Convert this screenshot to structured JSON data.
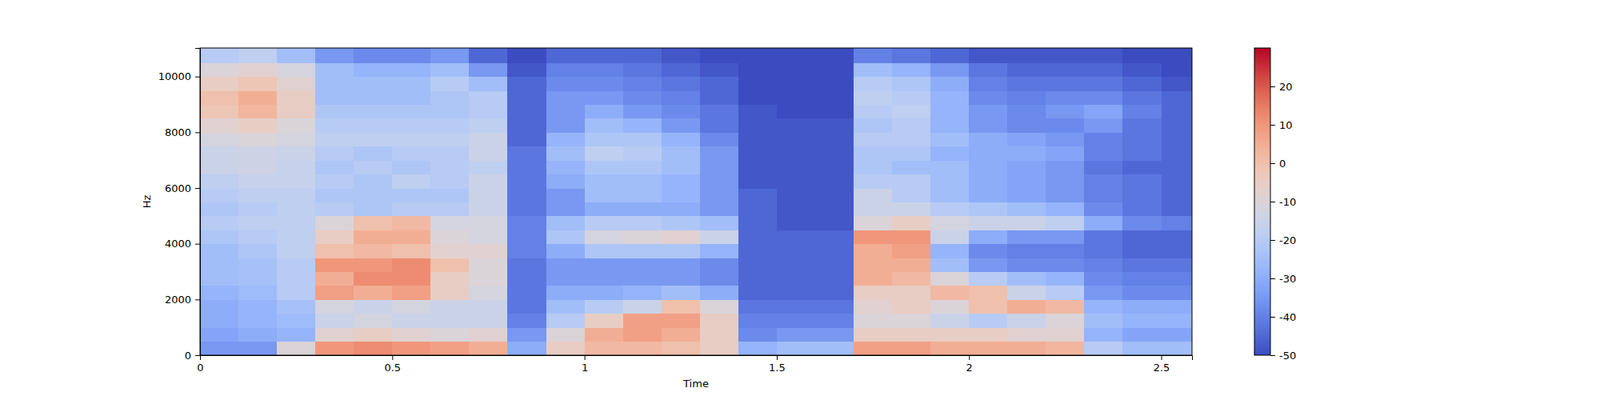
{
  "chart_data": {
    "type": "heatmap",
    "x_label": "Time",
    "y_label": "Hz",
    "xlim": [
      0,
      2.58
    ],
    "ylim": [
      0,
      11025
    ],
    "xticks": [
      0,
      0.5,
      1,
      1.5,
      2,
      2.5
    ],
    "yticks": [
      0,
      2000,
      4000,
      6000,
      8000,
      10000
    ],
    "x_bins": [
      0,
      0.1,
      0.2,
      0.3,
      0.4,
      0.5,
      0.6,
      0.7,
      0.8,
      0.9,
      1,
      1.1,
      1.2,
      1.3,
      1.4,
      1.5,
      1.6,
      1.7,
      1.8,
      1.9,
      2,
      2.1,
      2.2,
      2.3,
      2.4,
      2.5,
      2.58
    ],
    "y_bins": [
      0,
      500,
      1000,
      1500,
      2000,
      2500,
      3000,
      3500,
      4000,
      4500,
      5000,
      5500,
      6000,
      6500,
      7000,
      7500,
      8000,
      8500,
      9000,
      9500,
      10000,
      10500,
      11025
    ],
    "values": [
      [
        -35,
        -32,
        -30,
        -30,
        -28,
        -25,
        -25,
        -25,
        -22,
        -20,
        -22,
        -20,
        -18,
        -15,
        -15,
        -12,
        -8,
        -2,
        0,
        -5,
        -10,
        -20
      ],
      [
        -35,
        -30,
        -28,
        -28,
        -26,
        -24,
        -24,
        -22,
        -20,
        -18,
        -20,
        -18,
        -16,
        -14,
        -14,
        -10,
        -5,
        3,
        5,
        -2,
        -8,
        -18
      ],
      [
        -10,
        -28,
        -26,
        -24,
        -20,
        -20,
        -20,
        -18,
        -18,
        -18,
        -18,
        -18,
        -16,
        -16,
        -15,
        -12,
        -10,
        -5,
        -5,
        -8,
        -12,
        -25
      ],
      [
        10,
        -8,
        -15,
        -12,
        8,
        5,
        10,
        0,
        -5,
        -10,
        -20,
        -22,
        -20,
        -22,
        -20,
        -18,
        -20,
        -22,
        -25,
        -25,
        -25,
        -35
      ],
      [
        12,
        -5,
        -12,
        -15,
        5,
        12,
        10,
        2,
        5,
        0,
        -22,
        -22,
        -22,
        -20,
        -22,
        -18,
        -20,
        -22,
        -25,
        -25,
        -28,
        -38
      ],
      [
        10,
        -8,
        -15,
        -12,
        8,
        12,
        12,
        0,
        5,
        2,
        -20,
        -22,
        -18,
        -22,
        -20,
        -18,
        -20,
        -22,
        -25,
        -25,
        -28,
        -38
      ],
      [
        8,
        -10,
        -15,
        -15,
        -5,
        -5,
        0,
        -8,
        -10,
        -12,
        -20,
        -22,
        -20,
        -20,
        -20,
        -18,
        -20,
        -22,
        -22,
        -20,
        -25,
        -35
      ],
      [
        5,
        -8,
        -15,
        -15,
        -12,
        -10,
        -10,
        -8,
        -12,
        -12,
        -15,
        -15,
        -15,
        -18,
        -15,
        -15,
        -18,
        -20,
        -20,
        -25,
        -35,
        -45
      ],
      [
        -30,
        -35,
        -40,
        -42,
        -42,
        -42,
        -42,
        -40,
        -40,
        -40,
        -42,
        -42,
        -42,
        -42,
        -42,
        -45,
        -45,
        -45,
        -45,
        -45,
        -48,
        -50
      ],
      [
        -5,
        -10,
        -20,
        -25,
        -30,
        -35,
        -35,
        -30,
        -22,
        -25,
        -35,
        -35,
        -30,
        -28,
        -25,
        -28,
        -35,
        -35,
        -35,
        -38,
        -40,
        -45
      ],
      [
        2,
        5,
        -5,
        -20,
        -30,
        -35,
        -35,
        -22,
        -12,
        -20,
        -30,
        -25,
        -25,
        -22,
        -18,
        -22,
        -25,
        -30,
        -35,
        -38,
        -40,
        -45
      ],
      [
        2,
        8,
        8,
        -15,
        -28,
        -35,
        -35,
        -22,
        -10,
        -20,
        -30,
        -25,
        -25,
        -22,
        -20,
        -22,
        -28,
        -35,
        -38,
        -40,
        -42,
        -45
      ],
      [
        0,
        5,
        8,
        0,
        -25,
        -35,
        -35,
        -22,
        -8,
        -22,
        -30,
        -28,
        -28,
        -25,
        -25,
        -28,
        -35,
        -38,
        -40,
        -42,
        -45,
        -48
      ],
      [
        -5,
        -5,
        -5,
        -10,
        -30,
        -38,
        -38,
        -28,
        -15,
        -25,
        -35,
        -35,
        -35,
        -35,
        -35,
        -38,
        -42,
        -42,
        -45,
        -45,
        -48,
        -50
      ],
      [
        -28,
        -38,
        -40,
        -42,
        -45,
        -45,
        -45,
        -45,
        -45,
        -45,
        -45,
        -45,
        -48,
        -48,
        -48,
        -48,
        -48,
        -48,
        -50,
        -50,
        -50,
        -50
      ],
      [
        -25,
        -35,
        -40,
        -42,
        -45,
        -45,
        -45,
        -45,
        -45,
        -48,
        -48,
        -48,
        -48,
        -48,
        -48,
        -48,
        -48,
        -50,
        -50,
        -50,
        -50,
        -50
      ],
      [
        -25,
        -35,
        -40,
        -42,
        -45,
        -45,
        -45,
        -45,
        -45,
        -48,
        -48,
        -48,
        -48,
        -48,
        -48,
        -48,
        -48,
        -50,
        -50,
        -50,
        -50,
        -50
      ],
      [
        8,
        -5,
        -10,
        -8,
        -5,
        5,
        5,
        5,
        10,
        -10,
        -15,
        -15,
        -20,
        -22,
        -22,
        -20,
        -22,
        -20,
        -18,
        -20,
        -25,
        -40
      ],
      [
        8,
        -5,
        -10,
        -5,
        -5,
        2,
        5,
        8,
        10,
        -5,
        -15,
        -20,
        -20,
        -25,
        -22,
        -20,
        -20,
        -18,
        -20,
        -22,
        -28,
        -42
      ],
      [
        5,
        -5,
        -15,
        -10,
        2,
        -10,
        -25,
        -28,
        -15,
        -12,
        -20,
        -25,
        -25,
        -25,
        -28,
        -25,
        -28,
        -28,
        -28,
        -30,
        -35,
        -45
      ],
      [
        5,
        -5,
        -20,
        0,
        0,
        -20,
        -35,
        -38,
        -30,
        -15,
        -22,
        -30,
        -30,
        -30,
        -30,
        -30,
        -35,
        -35,
        -38,
        -40,
        -42,
        -48
      ],
      [
        5,
        -8,
        -15,
        5,
        -15,
        -25,
        -38,
        -40,
        -35,
        -15,
        -25,
        -32,
        -32,
        -32,
        -30,
        -32,
        -38,
        -38,
        -40,
        -42,
        -45,
        -48
      ],
      [
        3,
        -8,
        -10,
        2,
        -20,
        -28,
        -38,
        -40,
        -35,
        -18,
        -28,
        -35,
        -35,
        -35,
        -32,
        -35,
        -38,
        -35,
        -38,
        -42,
        -45,
        -48
      ],
      [
        -20,
        -28,
        -25,
        -28,
        -35,
        -38,
        -40,
        -42,
        -42,
        -30,
        -38,
        -40,
        -40,
        -42,
        -40,
        -40,
        -35,
        -32,
        -38,
        -42,
        -45,
        -48
      ],
      [
        -25,
        -32,
        -28,
        -30,
        -38,
        -40,
        -42,
        -45,
        -45,
        -38,
        -42,
        -42,
        -42,
        -45,
        -42,
        -42,
        -42,
        -40,
        -42,
        -45,
        -48,
        -50
      ],
      [
        -25,
        -32,
        -28,
        -30,
        -38,
        -40,
        -42,
        -45,
        -45,
        -40,
        -45,
        -45,
        -45,
        -45,
        -45,
        -45,
        -45,
        -45,
        -45,
        -48,
        -50,
        -50
      ]
    ],
    "colorbar": {
      "range": [
        -50,
        30
      ],
      "ticks": [
        -50,
        -40,
        -30,
        -20,
        -10,
        0,
        10,
        20
      ]
    }
  }
}
